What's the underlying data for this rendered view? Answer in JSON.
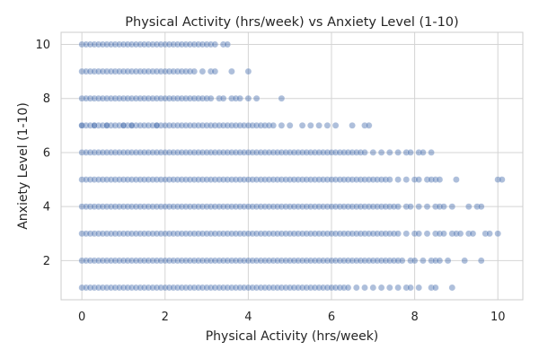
{
  "chart_data": {
    "type": "scatter",
    "title": "Physical Activity (hrs/week) vs Anxiety Level (1-10)",
    "xlabel": "Physical Activity (hrs/week)",
    "ylabel": "Anxiety Level (1-10)",
    "xlim": [
      -0.5,
      10.6
    ],
    "ylim": [
      0.55,
      10.45
    ],
    "xticks": [
      0,
      2,
      4,
      6,
      8,
      10
    ],
    "yticks": [
      2,
      4,
      6,
      8,
      10
    ],
    "grid": true,
    "legend": "none",
    "point_color": "#4c72b0",
    "point_alpha": 0.45,
    "rows": [
      {
        "y": 10,
        "dense_max": 3.2,
        "sparse": [
          3.4,
          3.5
        ]
      },
      {
        "y": 9,
        "dense_max": 2.7,
        "sparse": [
          2.9,
          3.1,
          3.2,
          3.6,
          4.0
        ]
      },
      {
        "y": 8,
        "dense_max": 3.1,
        "sparse": [
          3.3,
          3.4,
          3.6,
          3.7,
          3.8,
          4.0,
          4.2,
          4.8
        ]
      },
      {
        "y": 7,
        "dense_max": 4.6,
        "sparse": [
          0.0,
          0.3,
          0.6,
          1.0,
          1.2,
          1.8,
          4.8,
          5.0,
          5.3,
          5.5,
          5.7,
          5.9,
          6.1,
          6.5,
          6.8,
          6.9
        ]
      },
      {
        "y": 6,
        "dense_max": 6.8,
        "sparse": [
          7.0,
          7.2,
          7.4,
          7.6,
          7.8,
          7.9,
          8.1,
          8.2,
          8.4
        ]
      },
      {
        "y": 5,
        "dense_max": 7.4,
        "sparse": [
          7.6,
          7.8,
          8.0,
          8.1,
          8.3,
          8.4,
          8.5,
          8.6,
          9.0,
          10.0,
          10.1
        ]
      },
      {
        "y": 4,
        "dense_max": 7.6,
        "sparse": [
          7.8,
          7.9,
          8.1,
          8.3,
          8.5,
          8.6,
          8.7,
          8.9,
          9.3,
          9.5,
          9.6
        ]
      },
      {
        "y": 3,
        "dense_max": 7.6,
        "sparse": [
          7.8,
          8.0,
          8.1,
          8.3,
          8.5,
          8.6,
          8.7,
          8.9,
          9.0,
          9.1,
          9.3,
          9.4,
          9.7,
          9.8,
          10.0
        ]
      },
      {
        "y": 2,
        "dense_max": 7.7,
        "sparse": [
          7.9,
          8.0,
          8.2,
          8.4,
          8.5,
          8.6,
          8.8,
          9.2,
          9.6
        ]
      },
      {
        "y": 1,
        "dense_max": 6.4,
        "sparse": [
          6.6,
          6.8,
          7.0,
          7.2,
          7.4,
          7.6,
          7.8,
          7.9,
          8.1,
          8.4,
          8.5,
          8.9
        ]
      }
    ]
  }
}
